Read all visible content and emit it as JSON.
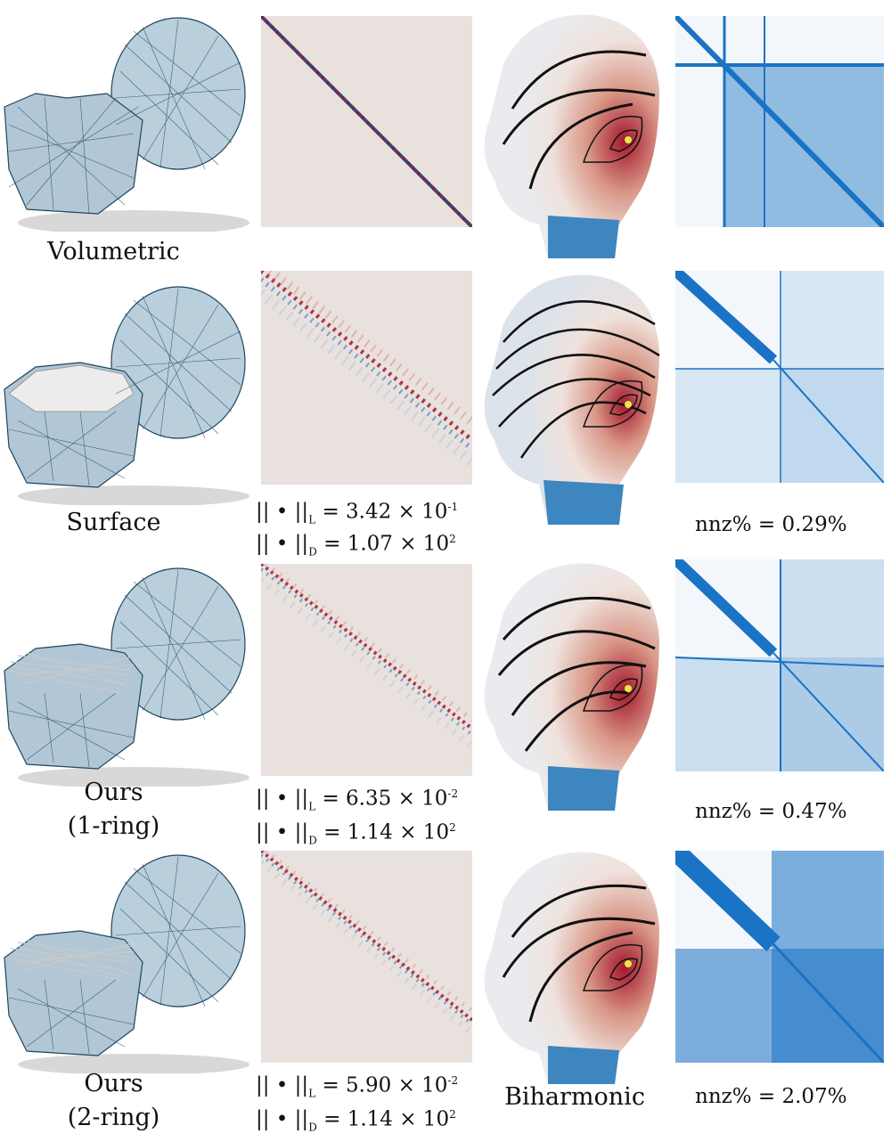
{
  "figure": {
    "rows": [
      {
        "method": "Volumetric",
        "method_line2": "",
        "norm_L": null,
        "norm_D": null,
        "nnz": null,
        "extra_label": ""
      },
      {
        "method": "Surface",
        "method_line2": "",
        "norm_L": {
          "prefix": "|| • ||",
          "sub": "L",
          "value": " = 3.42 × 10",
          "exp": "-1"
        },
        "norm_D": {
          "prefix": "|| • ||",
          "sub": "D",
          "value": " = 1.07 × 10",
          "exp": "2"
        },
        "nnz": "nnz% = 0.29%",
        "extra_label": ""
      },
      {
        "method": "Ours",
        "method_line2": "(1-ring)",
        "norm_L": {
          "prefix": "|| • ||",
          "sub": "L",
          "value": " = 6.35 × 10",
          "exp": "-2"
        },
        "norm_D": {
          "prefix": "|| • ||",
          "sub": "D",
          "value": " = 1.14 × 10",
          "exp": "2"
        },
        "nnz": "nnz% = 0.47%",
        "extra_label": ""
      },
      {
        "method": "Ours",
        "method_line2": "(2-ring)",
        "norm_L": {
          "prefix": "|| • ||",
          "sub": "L",
          "value": " = 5.90 × 10",
          "exp": "-2"
        },
        "norm_D": {
          "prefix": "|| • ||",
          "sub": "D",
          "value": " = 1.14 × 10",
          "exp": "2"
        },
        "nnz": "nnz% = 2.07%",
        "extra_label": "Biharmonic"
      }
    ]
  },
  "colors": {
    "mesh_fill": "#b9cfdc",
    "mesh_edge": "#1f4660",
    "diag_red": "#8b1a2b",
    "diag_blue": "#1c4f8f",
    "heat_red": "#a3182e",
    "heat_blue": "#2a7ab8",
    "spy_blue": "#1a73c4",
    "point_yellow": "#e8e84a"
  }
}
